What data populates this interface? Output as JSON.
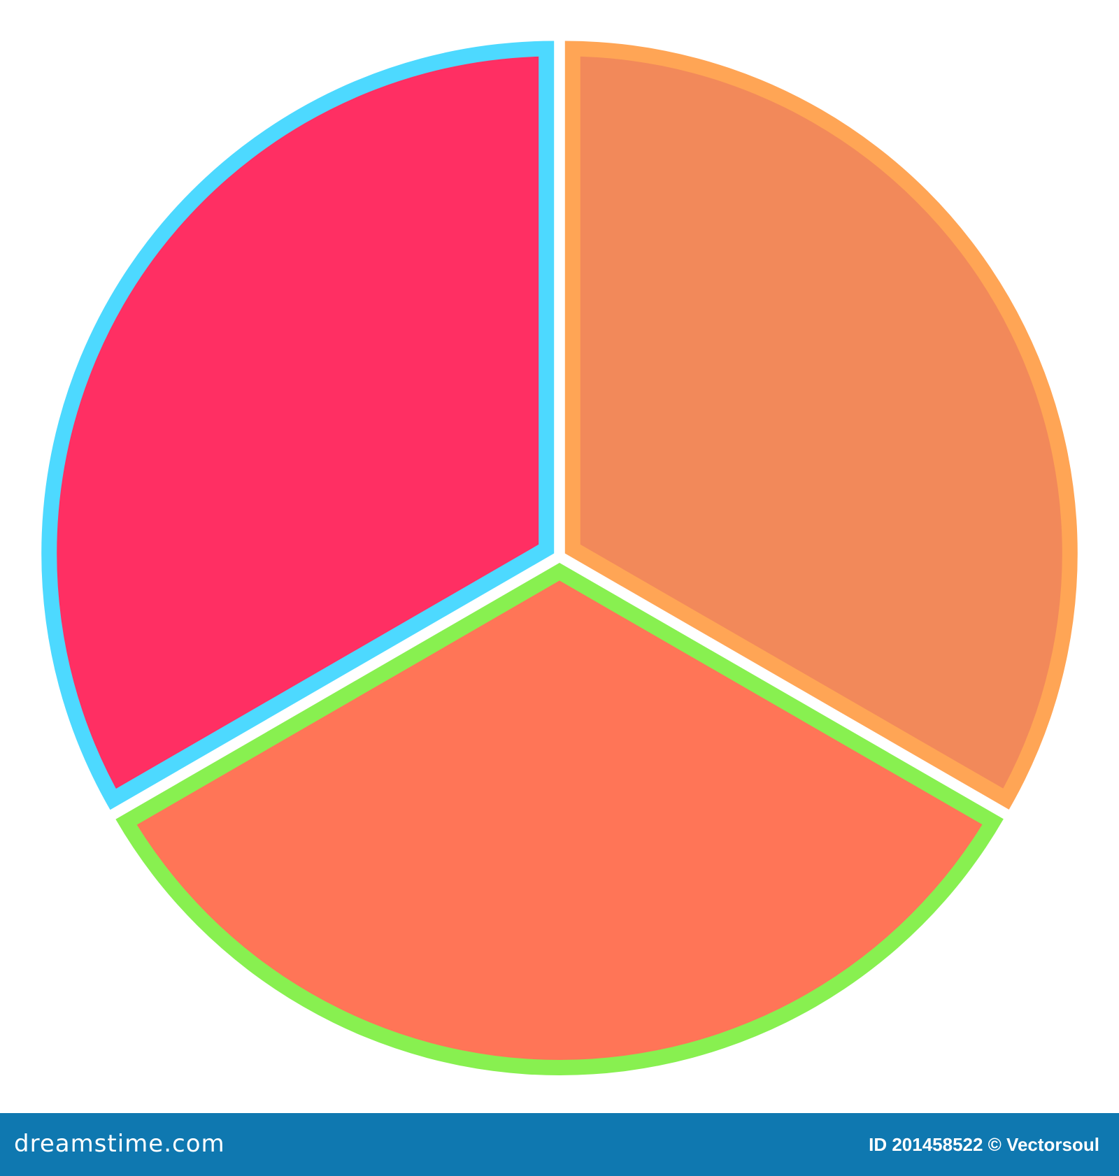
{
  "chart_data": {
    "type": "pie",
    "title": "",
    "start_angle_deg": -90,
    "direction": "clockwise",
    "slices": [
      {
        "value": 33.33,
        "fill": "#F2895A",
        "border": "#FFA555"
      },
      {
        "value": 33.33,
        "fill": "#FF7557",
        "border": "#88F050"
      },
      {
        "value": 33.34,
        "fill": "#FF2F63",
        "border": "#4DD9FF"
      }
    ],
    "legend": "none"
  },
  "footer": {
    "brand": "dreamstime.com",
    "credit": "ID 201458522 © Vectorsoul",
    "background": "#0F78B0"
  }
}
